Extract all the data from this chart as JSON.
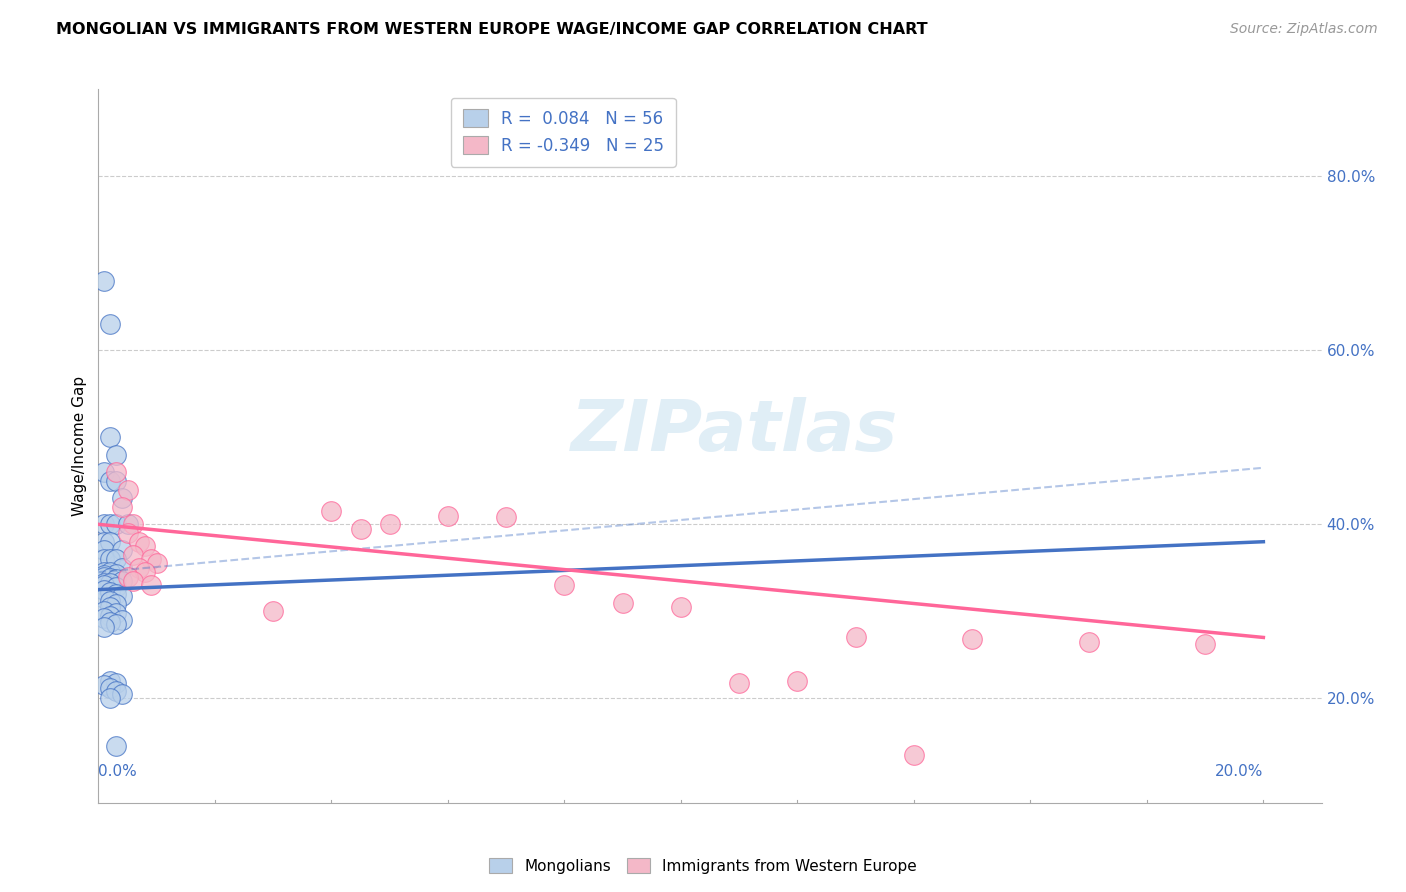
{
  "title": "MONGOLIAN VS IMMIGRANTS FROM WESTERN EUROPE WAGE/INCOME GAP CORRELATION CHART",
  "source": "Source: ZipAtlas.com",
  "ylabel": "Wage/Income Gap",
  "right_yticks": [
    "20.0%",
    "40.0%",
    "60.0%",
    "80.0%"
  ],
  "right_ytick_vals": [
    0.2,
    0.4,
    0.6,
    0.8
  ],
  "blue_color": "#B8D0EA",
  "pink_color": "#F4B8C8",
  "blue_line_color": "#4472C4",
  "pink_line_color": "#FF6699",
  "blue_scatter": [
    [
      0.001,
      0.68
    ],
    [
      0.002,
      0.63
    ],
    [
      0.002,
      0.5
    ],
    [
      0.003,
      0.48
    ],
    [
      0.001,
      0.46
    ],
    [
      0.002,
      0.45
    ],
    [
      0.003,
      0.45
    ],
    [
      0.004,
      0.43
    ],
    [
      0.001,
      0.4
    ],
    [
      0.002,
      0.4
    ],
    [
      0.003,
      0.4
    ],
    [
      0.005,
      0.4
    ],
    [
      0.001,
      0.38
    ],
    [
      0.002,
      0.38
    ],
    [
      0.001,
      0.37
    ],
    [
      0.004,
      0.37
    ],
    [
      0.001,
      0.36
    ],
    [
      0.002,
      0.36
    ],
    [
      0.003,
      0.36
    ],
    [
      0.004,
      0.35
    ],
    [
      0.001,
      0.345
    ],
    [
      0.002,
      0.345
    ],
    [
      0.003,
      0.343
    ],
    [
      0.001,
      0.342
    ],
    [
      0.001,
      0.34
    ],
    [
      0.002,
      0.338
    ],
    [
      0.003,
      0.337
    ],
    [
      0.004,
      0.335
    ],
    [
      0.001,
      0.333
    ],
    [
      0.002,
      0.332
    ],
    [
      0.001,
      0.33
    ],
    [
      0.003,
      0.328
    ],
    [
      0.001,
      0.325
    ],
    [
      0.002,
      0.322
    ],
    [
      0.003,
      0.32
    ],
    [
      0.004,
      0.318
    ],
    [
      0.001,
      0.315
    ],
    [
      0.002,
      0.312
    ],
    [
      0.003,
      0.308
    ],
    [
      0.002,
      0.305
    ],
    [
      0.001,
      0.3
    ],
    [
      0.003,
      0.298
    ],
    [
      0.002,
      0.295
    ],
    [
      0.001,
      0.292
    ],
    [
      0.004,
      0.29
    ],
    [
      0.002,
      0.288
    ],
    [
      0.003,
      0.285
    ],
    [
      0.001,
      0.282
    ],
    [
      0.002,
      0.22
    ],
    [
      0.003,
      0.218
    ],
    [
      0.001,
      0.215
    ],
    [
      0.002,
      0.212
    ],
    [
      0.003,
      0.208
    ],
    [
      0.004,
      0.205
    ],
    [
      0.002,
      0.2
    ],
    [
      0.003,
      0.145
    ]
  ],
  "pink_scatter": [
    [
      0.003,
      0.46
    ],
    [
      0.005,
      0.44
    ],
    [
      0.004,
      0.42
    ],
    [
      0.006,
      0.4
    ],
    [
      0.005,
      0.39
    ],
    [
      0.007,
      0.38
    ],
    [
      0.008,
      0.375
    ],
    [
      0.006,
      0.365
    ],
    [
      0.009,
      0.36
    ],
    [
      0.01,
      0.355
    ],
    [
      0.007,
      0.35
    ],
    [
      0.008,
      0.345
    ],
    [
      0.005,
      0.34
    ],
    [
      0.006,
      0.335
    ],
    [
      0.009,
      0.33
    ],
    [
      0.04,
      0.415
    ],
    [
      0.06,
      0.41
    ],
    [
      0.07,
      0.408
    ],
    [
      0.05,
      0.4
    ],
    [
      0.045,
      0.395
    ],
    [
      0.08,
      0.33
    ],
    [
      0.03,
      0.3
    ],
    [
      0.09,
      0.31
    ],
    [
      0.1,
      0.305
    ],
    [
      0.13,
      0.27
    ],
    [
      0.15,
      0.268
    ],
    [
      0.17,
      0.265
    ],
    [
      0.19,
      0.262
    ],
    [
      0.12,
      0.22
    ],
    [
      0.11,
      0.218
    ],
    [
      0.14,
      0.135
    ]
  ],
  "xlim": [
    0,
    0.21
  ],
  "ylim": [
    0.08,
    0.9
  ],
  "blue_trend_x": [
    0.0,
    0.2
  ],
  "blue_trend_y": [
    0.325,
    0.38
  ],
  "pink_trend_x": [
    0.0,
    0.2
  ],
  "pink_trend_y": [
    0.4,
    0.27
  ],
  "dash_trend_x": [
    0.0,
    0.2
  ],
  "dash_trend_y": [
    0.345,
    0.465
  ]
}
